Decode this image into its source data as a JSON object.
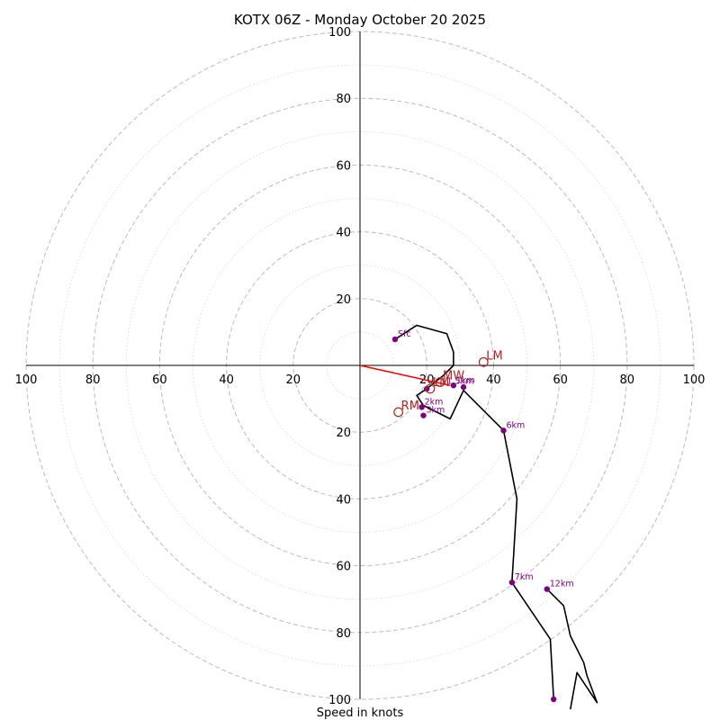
{
  "chart_data": {
    "type": "hodograph",
    "title": "KOTX 06Z - Monday October 20 2025",
    "xlabel": "Speed in knots",
    "xlim": [
      -100,
      100
    ],
    "ylim": [
      -100,
      100
    ],
    "ring_step_major": 20,
    "ring_step_minor": 10,
    "x_ticks": [
      "100",
      "80",
      "60",
      "40",
      "20",
      "20",
      "40",
      "60",
      "80",
      "100"
    ],
    "x_tick_values": [
      -100,
      -80,
      -60,
      -40,
      -20,
      20,
      40,
      60,
      80,
      100
    ],
    "y_ticks": [
      "100",
      "80",
      "60",
      "40",
      "20",
      "20",
      "40",
      "60",
      "80",
      "100"
    ],
    "y_tick_values": [
      100,
      80,
      60,
      40,
      20,
      -20,
      -40,
      -60,
      -80,
      -100
    ],
    "trace": [
      [
        10.5,
        7.8
      ],
      [
        17,
        12
      ],
      [
        26,
        9.5
      ],
      [
        28,
        4
      ],
      [
        28,
        0
      ],
      [
        25,
        -3
      ],
      [
        20,
        -7
      ],
      [
        17,
        -9
      ],
      [
        19,
        -12
      ],
      [
        27,
        -16
      ],
      [
        31,
        -7.5
      ],
      [
        43,
        -19.5
      ],
      [
        47,
        -40
      ],
      [
        46,
        -57
      ],
      [
        45.5,
        -65
      ],
      [
        57,
        -82
      ],
      [
        58,
        -100
      ]
    ],
    "trace2": [
      [
        56,
        -67
      ],
      [
        61,
        -72
      ],
      [
        63,
        -81
      ],
      [
        67,
        -89
      ],
      [
        68,
        -93
      ],
      [
        71,
        -101
      ],
      [
        65,
        -92
      ],
      [
        63,
        -103
      ]
    ],
    "height_markers": [
      {
        "label": "Sfc",
        "u": 10.5,
        "v": 7.8
      },
      {
        "label": "1km",
        "u": 28,
        "v": -6
      },
      {
        "label": "2km",
        "u": 18.5,
        "v": -12.5
      },
      {
        "label": "3km",
        "u": 19,
        "v": -15
      },
      {
        "label": "6km",
        "u": 43,
        "v": -19.5
      },
      {
        "label": "7km",
        "u": 45.5,
        "v": -65
      },
      {
        "label": "12km",
        "u": 56,
        "v": -67
      }
    ],
    "second_label": "1.5km",
    "storm_motions": [
      {
        "label": "LM",
        "u": 37,
        "v": 1
      },
      {
        "label": "RM",
        "u": 11.5,
        "v": -14
      },
      {
        "label": "MW",
        "u": 24,
        "v": -5
      },
      {
        "label": "LM",
        "u": 21,
        "v": -7
      }
    ],
    "shear_vector": {
      "from": [
        0,
        0
      ],
      "to": [
        27,
        -6
      ]
    },
    "colors": {
      "trace": "#000000",
      "marker": "#800080",
      "storm": "#b22222",
      "shear": "#ff0000",
      "grid": "#bbbbbb"
    }
  }
}
